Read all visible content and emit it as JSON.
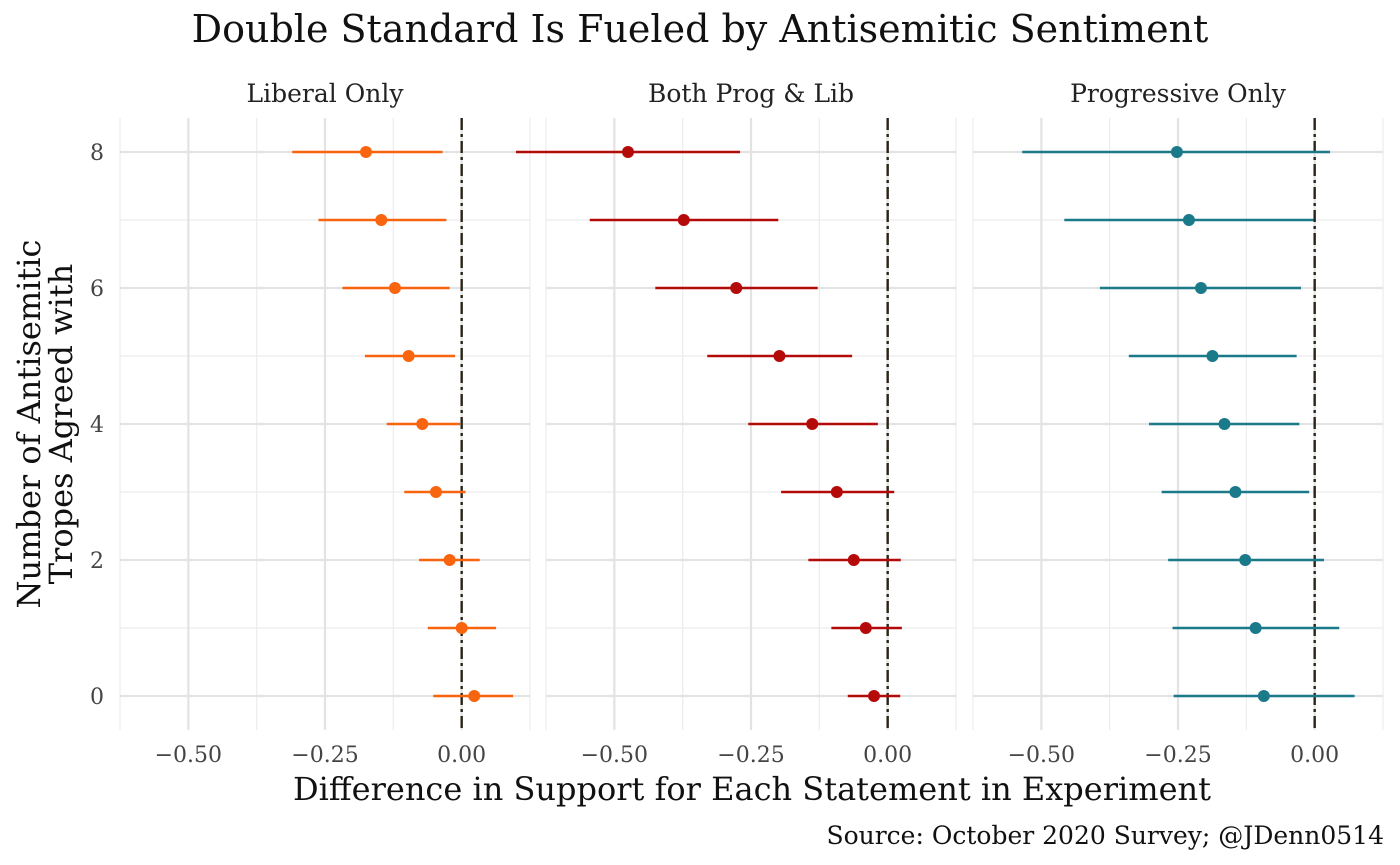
{
  "chart_data": {
    "type": "scatter",
    "title": "Double Standard Is Fueled by Antisemitic Sentiment",
    "xlabel": "Difference in Support for Each Statement in Experiment",
    "ylabel_lines": [
      "Number of Antisemitic",
      "Tropes Agreed with"
    ],
    "caption": "Source: October 2020 Survey; @JDenn0514",
    "xlim": [
      -0.625,
      0.125
    ],
    "ylim": [
      -0.5,
      8.5
    ],
    "x_ticks": [
      -0.5,
      -0.25,
      0.0
    ],
    "x_tick_labels": [
      "−0.50",
      "−0.25",
      "0.00"
    ],
    "y_ticks": [
      0,
      2,
      4,
      6,
      8
    ],
    "y_tick_labels": [
      "0",
      "2",
      "4",
      "6",
      "8"
    ],
    "reference_line_x": 0,
    "grid": true,
    "legend": "none",
    "panels": [
      {
        "name": "Liberal Only",
        "color": "#F8650E",
        "points": [
          {
            "y": 8,
            "x": -0.175,
            "lo": -0.31,
            "hi": -0.035
          },
          {
            "y": 7,
            "x": -0.147,
            "lo": -0.262,
            "hi": -0.028
          },
          {
            "y": 6,
            "x": -0.122,
            "lo": -0.218,
            "hi": -0.022
          },
          {
            "y": 5,
            "x": -0.097,
            "lo": -0.177,
            "hi": -0.012
          },
          {
            "y": 4,
            "x": -0.072,
            "lo": -0.137,
            "hi": -0.003
          },
          {
            "y": 3,
            "x": -0.047,
            "lo": -0.105,
            "hi": 0.007
          },
          {
            "y": 2,
            "x": -0.022,
            "lo": -0.078,
            "hi": 0.033
          },
          {
            "y": 1,
            "x": 0.0,
            "lo": -0.062,
            "hi": 0.063
          },
          {
            "y": 0,
            "x": 0.023,
            "lo": -0.052,
            "hi": 0.094
          }
        ]
      },
      {
        "name": "Both Prog & Lib",
        "color": "#B40A0A",
        "points": [
          {
            "y": 8,
            "x": -0.475,
            "lo": -0.68,
            "hi": -0.27
          },
          {
            "y": 7,
            "x": -0.373,
            "lo": -0.545,
            "hi": -0.2
          },
          {
            "y": 6,
            "x": -0.277,
            "lo": -0.425,
            "hi": -0.128
          },
          {
            "y": 5,
            "x": -0.198,
            "lo": -0.33,
            "hi": -0.065
          },
          {
            "y": 4,
            "x": -0.138,
            "lo": -0.255,
            "hi": -0.018
          },
          {
            "y": 3,
            "x": -0.093,
            "lo": -0.195,
            "hi": 0.012
          },
          {
            "y": 2,
            "x": -0.062,
            "lo": -0.145,
            "hi": 0.024
          },
          {
            "y": 1,
            "x": -0.04,
            "lo": -0.103,
            "hi": 0.026
          },
          {
            "y": 0,
            "x": -0.025,
            "lo": -0.073,
            "hi": 0.023
          }
        ]
      },
      {
        "name": "Progressive Only",
        "color": "#1B7A8A",
        "points": [
          {
            "y": 8,
            "x": -0.252,
            "lo": -0.535,
            "hi": 0.028
          },
          {
            "y": 7,
            "x": -0.23,
            "lo": -0.458,
            "hi": -0.002
          },
          {
            "y": 6,
            "x": -0.208,
            "lo": -0.393,
            "hi": -0.025
          },
          {
            "y": 5,
            "x": -0.187,
            "lo": -0.34,
            "hi": -0.033
          },
          {
            "y": 4,
            "x": -0.165,
            "lo": -0.303,
            "hi": -0.028
          },
          {
            "y": 3,
            "x": -0.145,
            "lo": -0.28,
            "hi": -0.01
          },
          {
            "y": 2,
            "x": -0.127,
            "lo": -0.268,
            "hi": 0.017
          },
          {
            "y": 1,
            "x": -0.108,
            "lo": -0.26,
            "hi": 0.045
          },
          {
            "y": 0,
            "x": -0.093,
            "lo": -0.258,
            "hi": 0.073
          }
        ]
      }
    ]
  }
}
